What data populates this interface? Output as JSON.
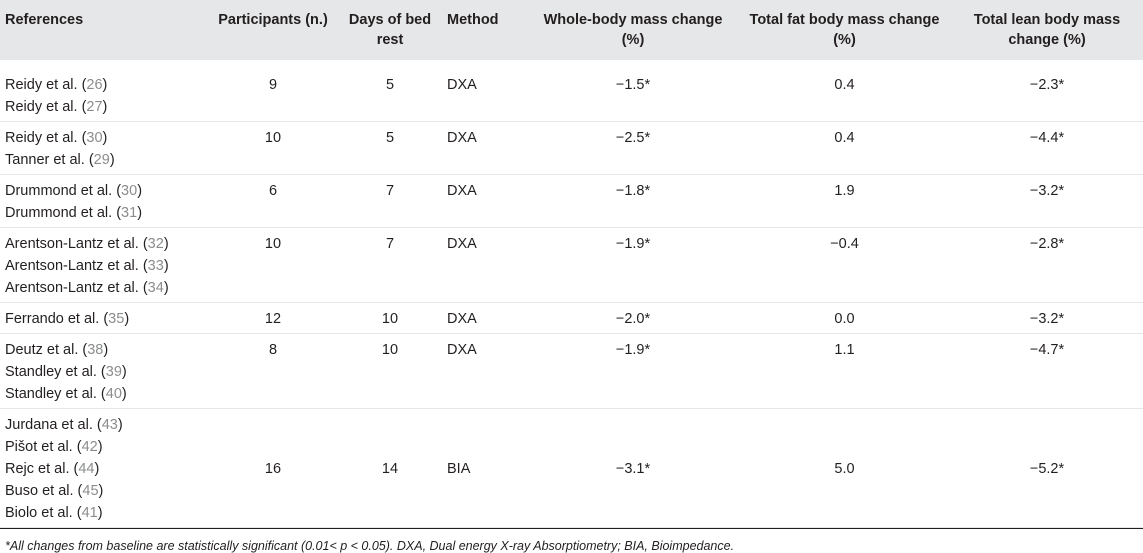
{
  "table": {
    "headers": {
      "references": "References",
      "participants": "Participants (n.)",
      "days": "Days of bed rest",
      "method": "Method",
      "whole_body": "Whole-body mass change (%)",
      "fat": "Total fat body mass change (%)",
      "lean": "Total lean body mass change (%)"
    },
    "rows": [
      {
        "refs": [
          {
            "name": "Reidy et al. (",
            "num": "26",
            "close": ")"
          },
          {
            "name": "Reidy et al. (",
            "num": "27",
            "close": ")"
          }
        ],
        "participants": "9",
        "days": "5",
        "method": "DXA",
        "whole_body": "−1.5*",
        "fat": "0.4",
        "lean": "−2.3*"
      },
      {
        "refs": [
          {
            "name": "Reidy et al. (",
            "num": "30",
            "close": ")"
          },
          {
            "name": "Tanner et al. (",
            "num": "29",
            "close": ")"
          }
        ],
        "participants": "10",
        "days": "5",
        "method": "DXA",
        "whole_body": "−2.5*",
        "fat": "0.4",
        "lean": "−4.4*"
      },
      {
        "refs": [
          {
            "name": "Drummond et al. (",
            "num": "30",
            "close": ")"
          },
          {
            "name": "Drummond et al. (",
            "num": "31",
            "close": ")"
          }
        ],
        "participants": "6",
        "days": "7",
        "method": "DXA",
        "whole_body": "−1.8*",
        "fat": "1.9",
        "lean": "−3.2*"
      },
      {
        "refs": [
          {
            "name": "Arentson-Lantz et al. (",
            "num": "32",
            "close": ")"
          },
          {
            "name": "Arentson-Lantz et al. (",
            "num": "33",
            "close": ")"
          },
          {
            "name": "Arentson-Lantz et al. (",
            "num": "34",
            "close": ")"
          }
        ],
        "participants": "10",
        "days": "7",
        "method": "DXA",
        "whole_body": "−1.9*",
        "fat": "−0.4",
        "lean": "−2.8*"
      },
      {
        "refs": [
          {
            "name": "Ferrando et al. (",
            "num": "35",
            "close": ")"
          }
        ],
        "participants": "12",
        "days": "10",
        "method": "DXA",
        "whole_body": "−2.0*",
        "fat": "0.0",
        "lean": "−3.2*"
      },
      {
        "refs": [
          {
            "name": "Deutz et al. (",
            "num": "38",
            "close": ")"
          },
          {
            "name": "Standley et al. (",
            "num": "39",
            "close": ")"
          },
          {
            "name": "Standley et al. (",
            "num": "40",
            "close": ")"
          }
        ],
        "participants": "8",
        "days": "10",
        "method": "DXA",
        "whole_body": "−1.9*",
        "fat": "1.1",
        "lean": "−4.7*"
      },
      {
        "refs": [
          {
            "name": "Jurdana et al. (",
            "num": "43",
            "close": ")"
          },
          {
            "name": "Pišot et al. (",
            "num": "42",
            "close": ")"
          },
          {
            "name": "Rejc et al. (",
            "num": "44",
            "close": ")"
          },
          {
            "name": "Buso et al. (",
            "num": "45",
            "close": ")"
          },
          {
            "name": "Biolo et al. (",
            "num": "41",
            "close": ")"
          }
        ],
        "participants": "16",
        "days": "14",
        "method": "BIA",
        "whole_body": "−3.1*",
        "fat": "5.0",
        "lean": "−5.2*",
        "vcenter": true
      }
    ]
  },
  "footnote": "*All changes from baseline are statistically significant (0.01< p < 0.05). DXA, Dual energy X-ray Absorptiometry; BIA, Bioimpedance."
}
